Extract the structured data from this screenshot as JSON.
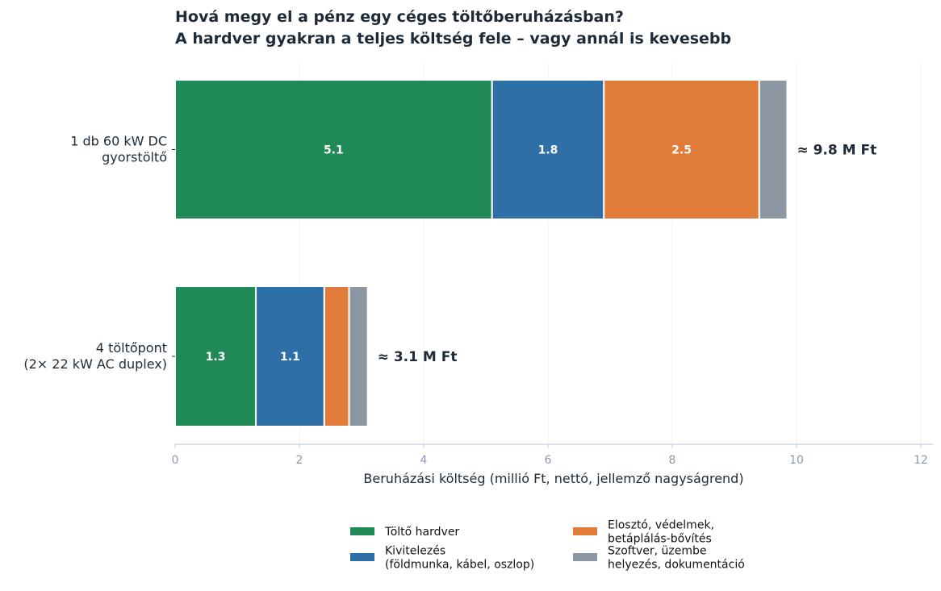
{
  "chart_data": {
    "type": "bar",
    "orientation": "horizontal",
    "stacked": true,
    "title": "Hová megy el a pénz egy céges töltőberuházásban?",
    "subtitle": "A hardver gyakran a teljes költség fele – vagy annál is kevesebb",
    "xlabel": "Beruházási költség (millió Ft, nettó, jellemző nagyságrend)",
    "ylabel": "",
    "xlim": [
      0,
      12
    ],
    "xticks": [
      0,
      2,
      4,
      6,
      8,
      10,
      12
    ],
    "grid": "vertical",
    "legend_position": "bottom",
    "categories": [
      {
        "lines": [
          "1 db 60 kW DC",
          "gyorstöltő"
        ],
        "total_label": "≈ 9.8 M Ft"
      },
      {
        "lines": [
          "4 töltőpont",
          "(2× 22 kW AC duplex)"
        ],
        "total_label": "≈ 3.1 M Ft"
      }
    ],
    "series": [
      {
        "name": "Töltő hardver",
        "legend_lines": [
          "Töltő hardver"
        ],
        "color": "#1f8a55",
        "values": [
          5.1,
          1.3
        ],
        "labels": [
          "5.1",
          "1.3"
        ]
      },
      {
        "name": "Kivitelezés (földmunka, kábel, oszlop)",
        "legend_lines": [
          "Kivitelezés",
          "(földmunka, kábel, oszlop)"
        ],
        "color": "#2e6fa7",
        "values": [
          1.8,
          1.1
        ],
        "labels": [
          "1.8",
          "1.1"
        ]
      },
      {
        "name": "Elosztó, védelmek, betáplálás-bővítés",
        "legend_lines": [
          "Elosztó, védelmek,",
          "betáplálás-bővítés"
        ],
        "color": "#e07b39",
        "values": [
          2.5,
          0.4
        ],
        "labels": [
          "2.5",
          ""
        ]
      },
      {
        "name": "Szoftver, üzembe helyezés, dokumentáció",
        "legend_lines": [
          "Szoftver, üzembe",
          "helyezés, dokumentáció"
        ],
        "color": "#8c97a3",
        "values": [
          0.45,
          0.3
        ],
        "labels": [
          "",
          ""
        ]
      }
    ]
  }
}
